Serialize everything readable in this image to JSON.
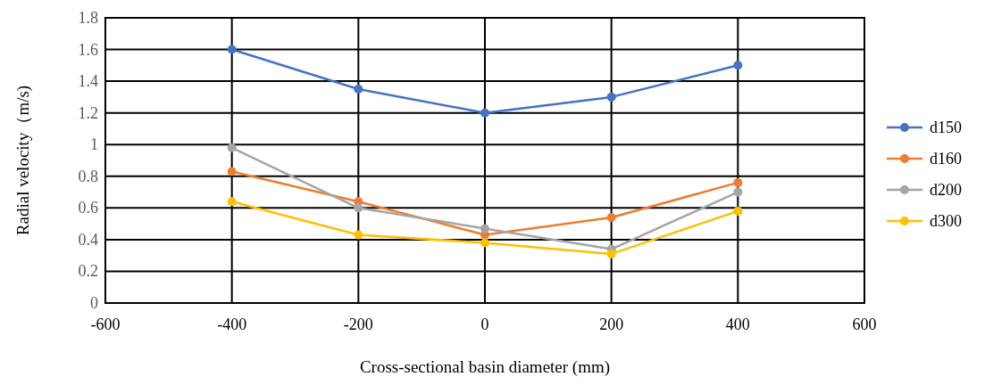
{
  "chart_data": {
    "type": "line",
    "xlabel": "Cross-sectional basin diameter (mm)",
    "ylabel": "Radial velocity（m/s)",
    "x": [
      -400,
      -200,
      0,
      200,
      400
    ],
    "series": [
      {
        "name": "d150",
        "color": "#4472c4",
        "values": [
          1.6,
          1.35,
          1.2,
          1.3,
          1.5
        ]
      },
      {
        "name": "d160",
        "color": "#ed7d31",
        "values": [
          0.83,
          0.64,
          0.43,
          0.54,
          0.76
        ]
      },
      {
        "name": "d200",
        "color": "#a5a5a5",
        "values": [
          0.98,
          0.6,
          0.47,
          0.34,
          0.7
        ]
      },
      {
        "name": "d300",
        "color": "#ffc000",
        "values": [
          0.64,
          0.43,
          0.38,
          0.31,
          0.58
        ]
      }
    ],
    "xlim": [
      -600,
      600
    ],
    "xticks": [
      -600,
      -400,
      -200,
      0,
      200,
      400,
      600
    ],
    "ylim": [
      0,
      1.8
    ],
    "yticks": [
      0,
      0.2,
      0.4,
      0.6,
      0.8,
      1,
      1.2,
      1.4,
      1.6,
      1.8
    ],
    "grid": true,
    "legend": "right",
    "marker": "circle",
    "line_style": "solid"
  }
}
